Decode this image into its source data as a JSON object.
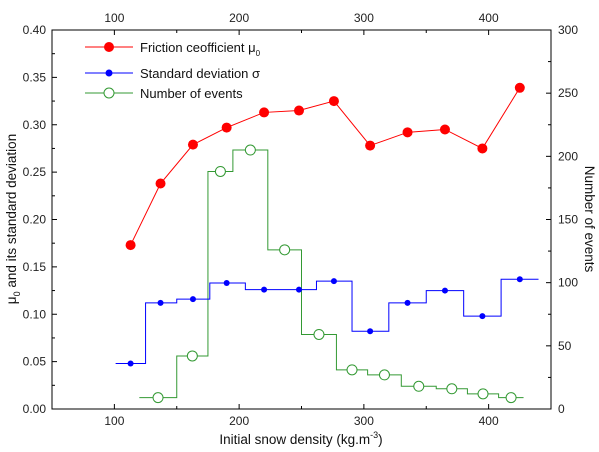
{
  "chart_data": {
    "type": "line",
    "xlabel": "Initial snow density (kg.m",
    "xlabel_sup": "-3",
    "xlabel_tail": ")",
    "ylabel_left": "μ",
    "ylabel_left_sub": "0",
    "ylabel_left_tail": " and its standard deviation",
    "ylabel_right": "Number of events",
    "xlim": [
      50,
      450
    ],
    "ylim_left": [
      0.0,
      0.4
    ],
    "ylim_right": [
      0,
      300
    ],
    "x_ticks": [
      "100",
      "200",
      "300",
      "400"
    ],
    "x_tick_values": [
      100,
      200,
      300,
      400
    ],
    "y_left_ticks": [
      "0.00",
      "0.05",
      "0.10",
      "0.15",
      "0.20",
      "0.25",
      "0.30",
      "0.35",
      "0.40"
    ],
    "y_left_tick_values": [
      0.0,
      0.05,
      0.1,
      0.15,
      0.2,
      0.25,
      0.3,
      0.35,
      0.4
    ],
    "y_right_ticks": [
      "0",
      "50",
      "100",
      "150",
      "200",
      "250",
      "300"
    ],
    "y_right_tick_values": [
      0,
      50,
      100,
      150,
      200,
      250,
      300
    ],
    "legend_position": "top-left",
    "series": [
      {
        "name": "Friction ceofficient μ",
        "name_sub": "0",
        "axis": "left",
        "style": "line-filled-markers",
        "color": "#ff0000",
        "x": [
          113,
          137,
          163,
          190,
          220,
          248,
          276,
          305,
          335,
          365,
          395,
          425
        ],
        "y": [
          0.173,
          0.238,
          0.279,
          0.297,
          0.313,
          0.315,
          0.325,
          0.278,
          0.292,
          0.295,
          0.275,
          0.339
        ]
      },
      {
        "name": "Standard deviation σ",
        "axis": "left",
        "style": "step-filled-markers",
        "color": "#0000ff",
        "x": [
          113,
          137,
          163,
          190,
          220,
          248,
          276,
          305,
          335,
          365,
          395,
          425
        ],
        "y": [
          0.048,
          0.112,
          0.116,
          0.133,
          0.126,
          0.126,
          0.135,
          0.082,
          0.112,
          0.125,
          0.098,
          0.137
        ]
      },
      {
        "name": "Number of events",
        "axis": "right",
        "style": "step-open-markers",
        "color": "#339933",
        "x": [
          120,
          150,
          175,
          195,
          223,
          250,
          278,
          303,
          330,
          358,
          383,
          408,
          428
        ],
        "y": [
          9,
          42,
          188,
          205,
          126,
          59,
          31,
          27,
          18,
          16,
          12,
          9,
          9
        ],
        "markers_on": [
          0,
          1,
          2,
          3,
          4,
          5,
          6,
          7,
          8,
          9,
          10,
          11
        ]
      }
    ]
  }
}
